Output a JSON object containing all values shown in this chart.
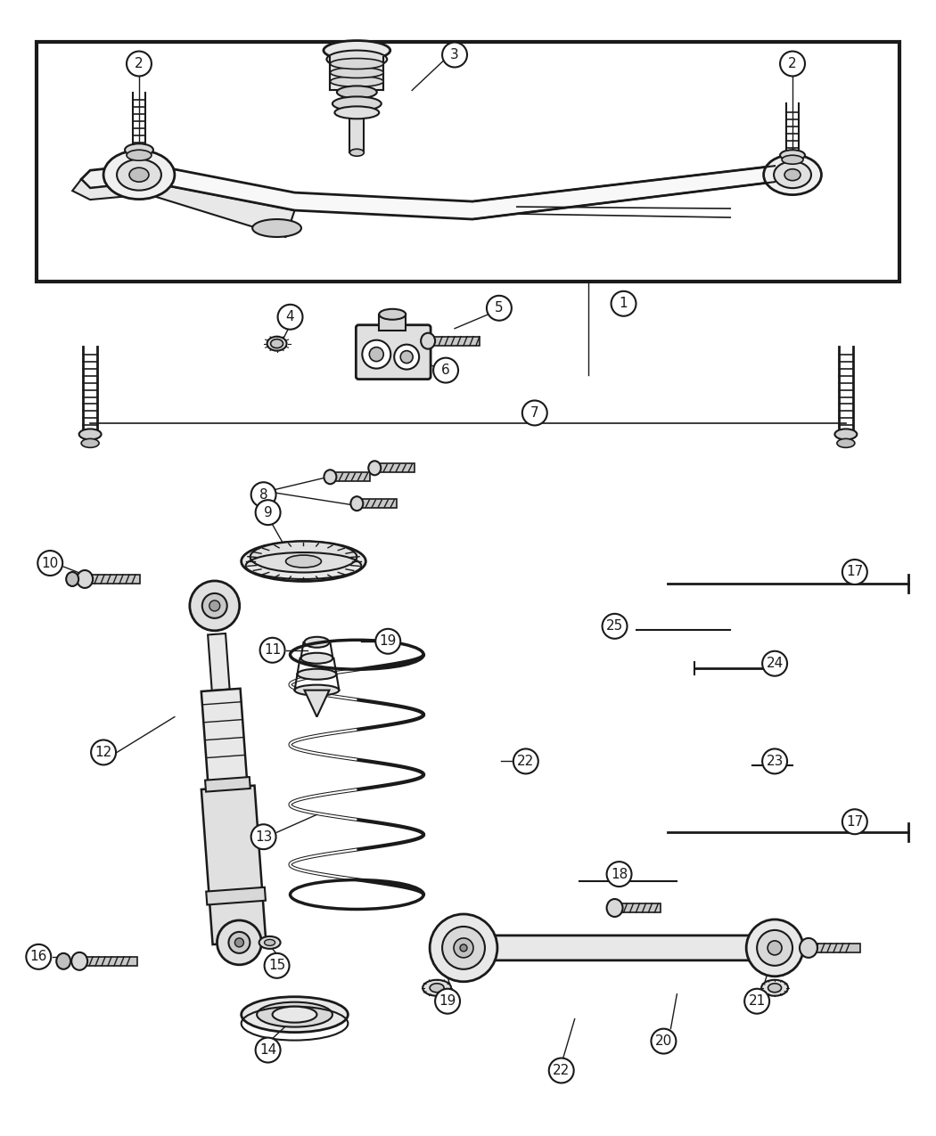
{
  "bg_color": "#ffffff",
  "line_color": "#1a1a1a",
  "fig_width": 10.5,
  "fig_height": 12.75,
  "dpi": 100
}
